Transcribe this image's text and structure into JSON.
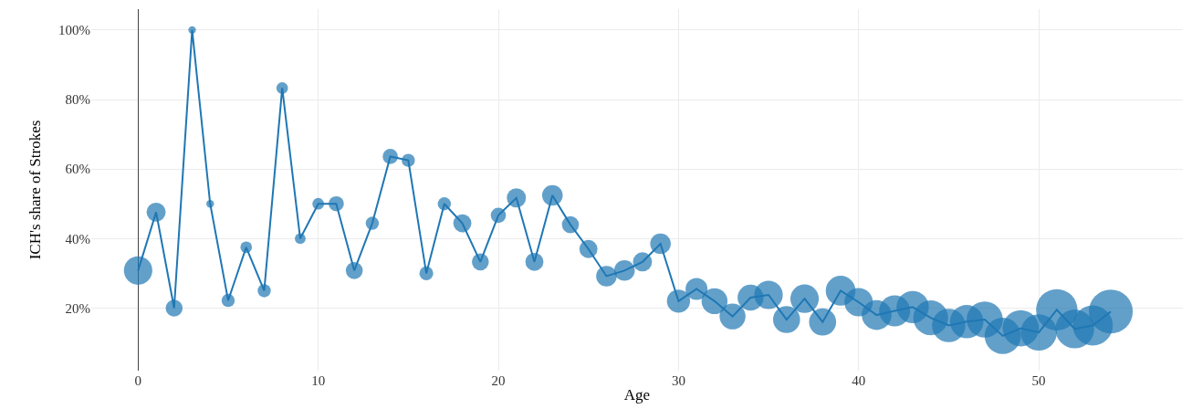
{
  "chart_data": {
    "type": "bubble",
    "xlabel": "Age",
    "ylabel": "ICH's share of Strokes",
    "x": [
      0,
      1,
      2,
      3,
      4,
      5,
      6,
      7,
      8,
      9,
      10,
      11,
      12,
      13,
      14,
      15,
      16,
      17,
      18,
      19,
      20,
      21,
      22,
      23,
      24,
      25,
      26,
      27,
      28,
      29,
      30,
      31,
      32,
      33,
      34,
      35,
      36,
      37,
      38,
      39,
      40,
      41,
      42,
      43,
      44,
      45,
      46,
      47,
      48,
      49,
      50,
      51,
      52,
      53,
      54
    ],
    "series": [
      {
        "type": "line",
        "color": "#1f77b4",
        "line_style": "solid",
        "values": [
          30.8,
          47.6,
          20,
          100,
          50,
          22.2,
          37.5,
          25,
          83.3,
          40,
          50,
          50,
          30.8,
          44.4,
          63.6,
          62.5,
          30,
          50,
          44.4,
          33.3,
          46.7,
          51.7,
          33.3,
          52.4,
          44,
          37,
          29.2,
          30.8,
          33.3,
          38.5,
          22,
          25.5,
          22,
          17.6,
          23,
          23.8,
          16.7,
          22.7,
          16,
          25,
          21.7,
          18,
          19.2,
          20.3,
          17.2,
          15,
          16.1,
          16.7,
          12,
          14.2,
          13,
          19.5,
          14,
          15,
          19
        ]
      },
      {
        "color": "#1f77b4",
        "values": [
          30.8,
          47.6,
          20,
          100,
          50,
          22.2,
          37.5,
          25,
          83.3,
          40,
          50,
          50,
          30.8,
          44.4,
          63.6,
          62.5,
          30,
          50,
          44.4,
          33.3,
          46.7,
          51.7,
          33.3,
          52.4,
          44,
          37,
          29.2,
          30.8,
          33.3,
          38.5,
          22,
          25.5,
          22,
          17.6,
          23,
          23.8,
          16.7,
          22.7,
          16,
          25,
          21.7,
          18,
          19.2,
          20.3,
          17.2,
          15,
          16.1,
          16.7,
          12,
          14.2,
          13,
          19.5,
          14,
          15,
          19
        ],
        "sizes": [
          0.42,
          0.19,
          0.15,
          0.03,
          0.03,
          0.09,
          0.07,
          0.09,
          0.07,
          0.06,
          0.07,
          0.12,
          0.15,
          0.09,
          0.12,
          0.09,
          0.1,
          0.09,
          0.17,
          0.15,
          0.12,
          0.19,
          0.17,
          0.22,
          0.15,
          0.17,
          0.22,
          0.22,
          0.19,
          0.22,
          0.28,
          0.25,
          0.35,
          0.35,
          0.35,
          0.42,
          0.38,
          0.42,
          0.38,
          0.46,
          0.42,
          0.46,
          0.5,
          0.54,
          0.63,
          0.58,
          0.58,
          0.68,
          0.68,
          0.68,
          0.68,
          0.89,
          0.78,
          0.83,
          1
        ]
      }
    ],
    "xlim": [
      -2.6,
      58
    ],
    "xticks": [
      0,
      10,
      20,
      30,
      40,
      50
    ],
    "ylim": [
      2,
      106
    ],
    "yticks": [
      {
        "value": 20,
        "label": "20%"
      },
      {
        "value": 40,
        "label": "40%"
      },
      {
        "value": 60,
        "label": "60%"
      },
      {
        "value": 80,
        "label": "80%"
      },
      {
        "value": 100,
        "label": "100%"
      }
    ],
    "grid": true
  }
}
